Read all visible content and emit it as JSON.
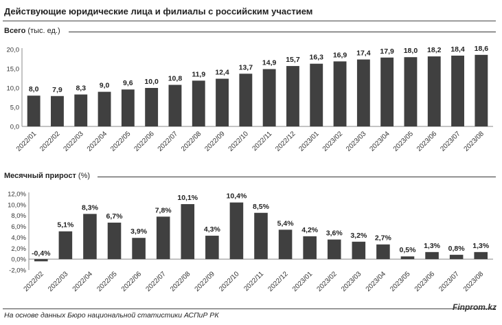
{
  "title": "Действующие юридические лица и филиалы с российским участием",
  "footer": {
    "source": "На основе данных Бюро национальной статистики АСПиР РК",
    "brand": "Finprom.kz"
  },
  "colors": {
    "bar": "#404040",
    "text": "#222222",
    "axis": "#888888"
  },
  "chart_data": [
    {
      "type": "bar",
      "title_bold": "Всего",
      "title_rest": " (тыс. ед.)",
      "categories": [
        "2022/01",
        "2022/02",
        "2022/03",
        "2022/04",
        "2022/05",
        "2022/06",
        "2022/07",
        "2022/08",
        "2022/09",
        "2022/10",
        "2022/11",
        "2022/12",
        "2023/01",
        "2023/02",
        "2023/03",
        "2023/04",
        "2023/05",
        "2023/06",
        "2023/07",
        "2023/08"
      ],
      "values": [
        8.0,
        7.9,
        8.3,
        9.0,
        9.6,
        10.0,
        10.8,
        11.9,
        12.4,
        13.7,
        14.9,
        15.7,
        16.3,
        16.9,
        17.4,
        17.9,
        18.0,
        18.2,
        18.4,
        18.6
      ],
      "data_labels": [
        "8,0",
        "7,9",
        "8,3",
        "9,0",
        "9,6",
        "10,0",
        "10,8",
        "11,9",
        "12,4",
        "13,7",
        "14,9",
        "15,7",
        "16,3",
        "16,9",
        "17,4",
        "17,9",
        "18,0",
        "18,2",
        "18,4",
        "18,6"
      ],
      "yticks": [
        0,
        5,
        10,
        15,
        20
      ],
      "ytick_labels": [
        "0,0",
        "5,0",
        "10,0",
        "15,0",
        "20,0"
      ],
      "ylim": [
        0,
        20
      ]
    },
    {
      "type": "bar",
      "title_bold": "Месячный прирост",
      "title_rest": " (%)",
      "categories": [
        "2022/02",
        "2022/03",
        "2022/04",
        "2022/05",
        "2022/06",
        "2022/07",
        "2022/08",
        "2022/09",
        "2022/10",
        "2022/11",
        "2022/12",
        "2023/01",
        "2023/02",
        "2023/03",
        "2023/04",
        "2023/05",
        "2023/06",
        "2023/07",
        "2023/08"
      ],
      "values": [
        -0.4,
        5.1,
        8.3,
        6.7,
        3.9,
        7.8,
        10.1,
        4.3,
        10.4,
        8.5,
        5.4,
        4.2,
        3.6,
        3.2,
        2.7,
        0.5,
        1.3,
        0.8,
        1.3
      ],
      "data_labels": [
        "-0,4%",
        "5,1%",
        "8,3%",
        "6,7%",
        "3,9%",
        "7,8%",
        "10,1%",
        "4,3%",
        "10,4%",
        "8,5%",
        "5,4%",
        "4,2%",
        "3,6%",
        "3,2%",
        "2,7%",
        "0,5%",
        "1,3%",
        "0,8%",
        "1,3%"
      ],
      "yticks": [
        -2,
        0,
        2,
        4,
        6,
        8,
        10,
        12
      ],
      "ytick_labels": [
        "-2,0%",
        "0,0%",
        "2,0%",
        "4,0%",
        "6,0%",
        "8,0%",
        "10,0%",
        "12,0%"
      ],
      "ylim": [
        -2,
        12
      ]
    }
  ]
}
